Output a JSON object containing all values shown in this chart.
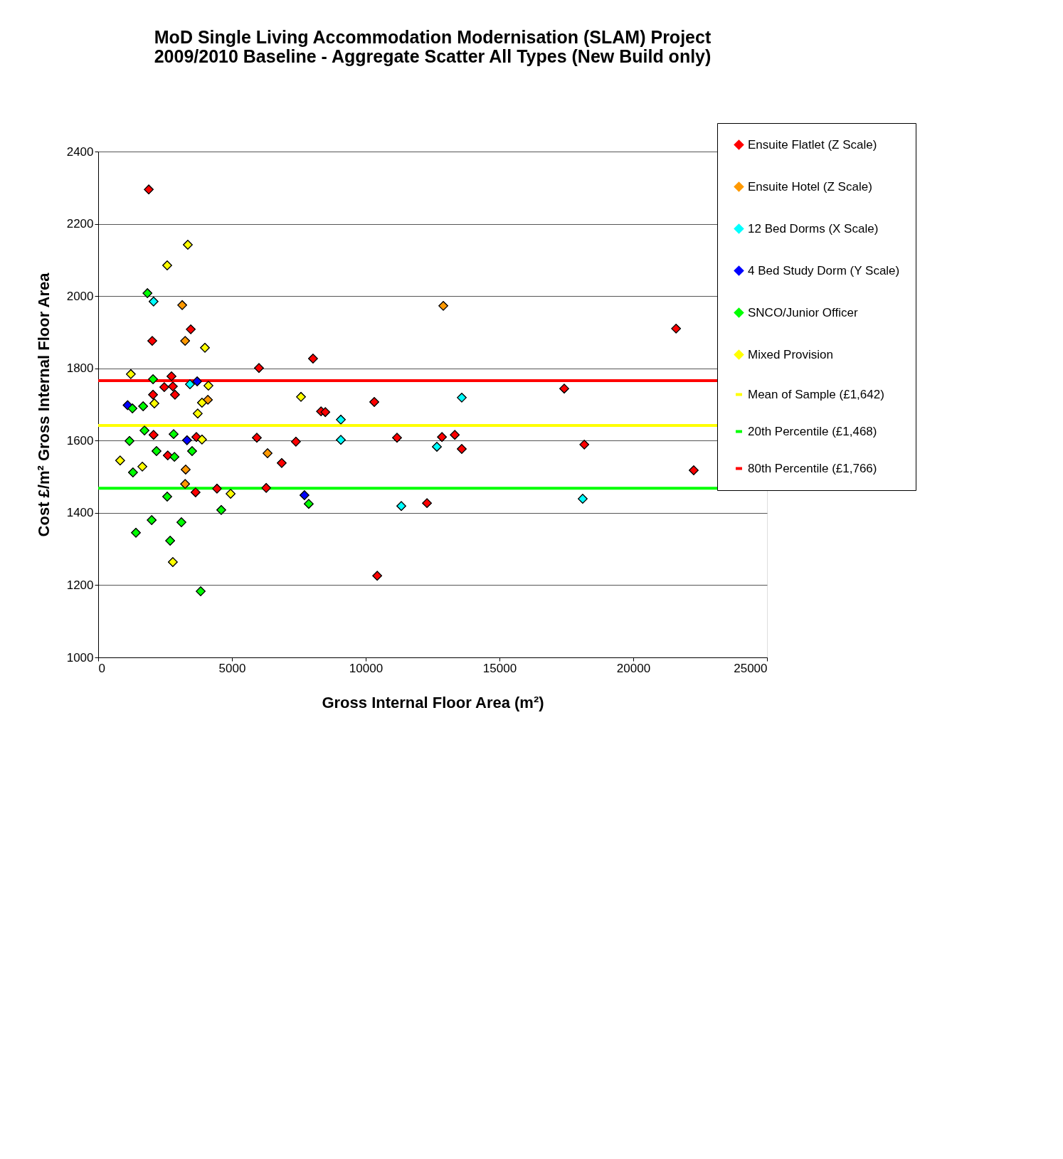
{
  "chart_data": {
    "type": "scatter",
    "title": [
      "MoD Single Living Accommodation Modernisation (SLAM) Project",
      "2009/2010 Baseline - Aggregate Scatter All Types (New Build only)"
    ],
    "xlabel": "Gross Internal Floor Area (m²)",
    "ylabel": "Cost £/m² Gross Internal Floor Area",
    "xlim": [
      0,
      25000
    ],
    "xticks": [
      0,
      5000,
      10000,
      15000,
      20000,
      25000
    ],
    "ylim": [
      1000,
      2400
    ],
    "yticks": [
      1000,
      1200,
      1400,
      1600,
      1800,
      2000,
      2200,
      2400
    ],
    "grid": "y",
    "legend": "top right",
    "marker": "diamond",
    "series": [
      {
        "name": "Ensuite Flatlet (Z Scale)",
        "color": "#ff0000",
        "x": [
          1890,
          2020,
          3460,
          2740,
          2470,
          2790,
          2050,
          2870,
          2070,
          2600,
          3670,
          3640,
          4440,
          6010,
          5930,
          6280,
          6860,
          7390,
          8030,
          8330,
          8490,
          10320,
          10430,
          11170,
          12290,
          12850,
          13330,
          13590,
          17420,
          18170,
          21600,
          22260
        ],
        "values": [
          2295,
          1876,
          1908,
          1778,
          1748,
          1750,
          1727,
          1727,
          1616,
          1559,
          1610,
          1457,
          1467,
          1801,
          1608,
          1469,
          1538,
          1597,
          1827,
          1681,
          1679,
          1707,
          1226,
          1608,
          1427,
          1610,
          1616,
          1577,
          1744,
          1589,
          1910,
          1518
        ]
      },
      {
        "name": "Ensuite Hotel (Z Scale)",
        "color": "#ff9900",
        "x": [
          3140,
          3250,
          4100,
          3270,
          3250,
          6330,
          12900
        ],
        "values": [
          1975,
          1876,
          1713,
          1520,
          1480,
          1565,
          1973
        ]
      },
      {
        "name": "12 Bed Dorms (X Scale)",
        "color": "#00ffff",
        "x": [
          2070,
          3430,
          9070,
          9070,
          12660,
          13590,
          11330,
          18110
        ],
        "values": [
          1985,
          1756,
          1658,
          1602,
          1583,
          1719,
          1419,
          1439
        ]
      },
      {
        "name": "4 Bed Study Dorm (Y Scale)",
        "color": "#0000ff",
        "x": [
          1100,
          3700,
          3320,
          7710
        ],
        "values": [
          1698,
          1764,
          1601,
          1449
        ]
      },
      {
        "name": "SNCO/Junior Officer",
        "color": "#00ff00",
        "x": [
          1840,
          2050,
          1280,
          1680,
          1730,
          1170,
          2820,
          2180,
          2850,
          3510,
          1300,
          2580,
          2000,
          1410,
          3110,
          2690,
          4600,
          7870,
          3830
        ],
        "values": [
          2008,
          1770,
          1689,
          1695,
          1628,
          1599,
          1618,
          1571,
          1555,
          1571,
          1512,
          1445,
          1380,
          1345,
          1374,
          1323,
          1408,
          1425,
          1183
        ]
      },
      {
        "name": "Mixed Provision",
        "color": "#ffff00",
        "x": [
          3350,
          2580,
          3990,
          1220,
          4120,
          2100,
          3880,
          3720,
          3880,
          820,
          1650,
          4950,
          2790,
          7580
        ],
        "values": [
          2142,
          2085,
          1857,
          1784,
          1752,
          1703,
          1705,
          1675,
          1603,
          1545,
          1528,
          1453,
          1264,
          1721
        ]
      }
    ],
    "ref_lines": [
      {
        "axis": "y",
        "value": 1642,
        "label": "Mean of Sample (£1,642)",
        "color": "#ffff00"
      },
      {
        "axis": "y",
        "value": 1468,
        "label": "20th Percentile (£1,468)",
        "color": "#00ff00"
      },
      {
        "axis": "y",
        "value": 1766,
        "label": "80th Percentile (£1,766)",
        "color": "#ff0000"
      }
    ]
  }
}
